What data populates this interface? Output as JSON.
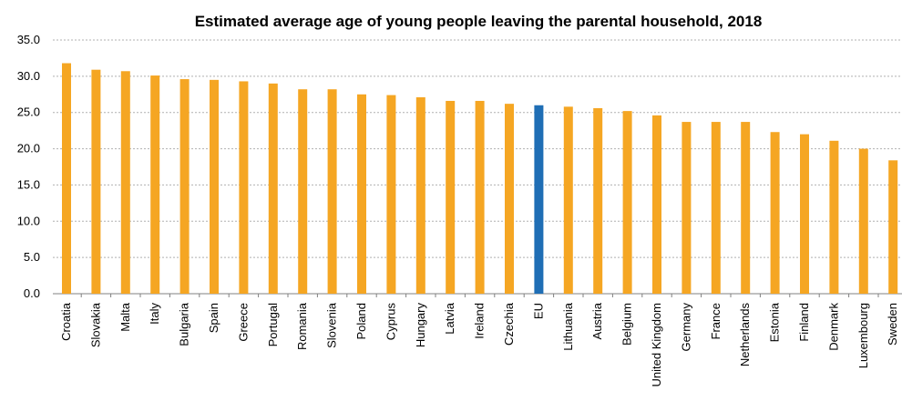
{
  "chart_data": {
    "type": "bar",
    "title": "Estimated average age of young people leaving the parental household, 2018",
    "xlabel": "",
    "ylabel": "",
    "ylim": [
      0,
      35
    ],
    "yticks": [
      "0.0",
      "5.0",
      "10.0",
      "15.0",
      "20.0",
      "25.0",
      "30.0",
      "35.0"
    ],
    "grid": true,
    "categories": [
      "Croatia",
      "Slovakia",
      "Malta",
      "Italy",
      "Bulgaria",
      "Spain",
      "Greece",
      "Portugal",
      "Romania",
      "Slovenia",
      "Poland",
      "Cyprus",
      "Hungary",
      "Latvia",
      "Ireland",
      "Czechia",
      "EU",
      "Lithuania",
      "Austria",
      "Belgium",
      "United Kingdom",
      "Germany",
      "France",
      "Netherlands",
      "Estonia",
      "Finland",
      "Denmark",
      "Luxembourg",
      "Sweden"
    ],
    "values": [
      31.8,
      30.9,
      30.7,
      30.1,
      29.6,
      29.5,
      29.3,
      29.0,
      28.2,
      28.2,
      27.5,
      27.4,
      27.1,
      26.6,
      26.6,
      26.2,
      26.0,
      25.8,
      25.6,
      25.2,
      24.6,
      23.7,
      23.7,
      23.7,
      22.3,
      22.0,
      21.1,
      20.0,
      18.4
    ],
    "colors": {
      "default": "#f5a623",
      "highlight": "#1f6eb5",
      "highlight_category": "EU",
      "grid": "#b0b0b0",
      "axis": "#808080"
    }
  }
}
